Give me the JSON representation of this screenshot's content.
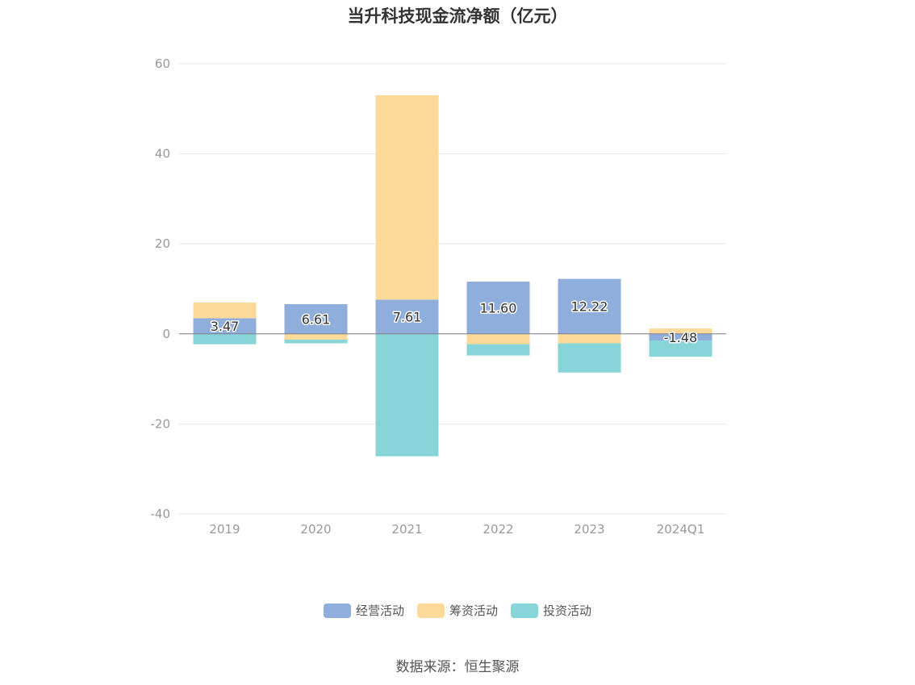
{
  "chart_data": {
    "type": "bar",
    "stacked": true,
    "title": "当升科技现金流净额（亿元）",
    "categories": [
      "2019",
      "2020",
      "2021",
      "2022",
      "2023",
      "2024Q1"
    ],
    "series": [
      {
        "name": "经营活动",
        "color": "#8FAEDB",
        "values": [
          3.47,
          6.61,
          7.61,
          11.6,
          12.22,
          -1.48
        ]
      },
      {
        "name": "筹资活动",
        "color": "#FDD99A",
        "values": [
          3.5,
          -1.3,
          45.4,
          -2.3,
          -2.1,
          1.2
        ]
      },
      {
        "name": "投资活动",
        "color": "#88D5D9",
        "values": [
          -2.3,
          -0.8,
          -27.2,
          -2.5,
          -6.5,
          -3.6
        ]
      }
    ],
    "data_labels": [
      "3.47",
      "6.61",
      "7.61",
      "11.60",
      "12.22",
      "-1.48"
    ],
    "ylim": [
      -40,
      60
    ],
    "yticks": [
      "-40",
      "-20",
      "0",
      "20",
      "40",
      "60"
    ],
    "grid": true,
    "legend_position": "bottom",
    "source": "数据来源：恒生聚源"
  }
}
